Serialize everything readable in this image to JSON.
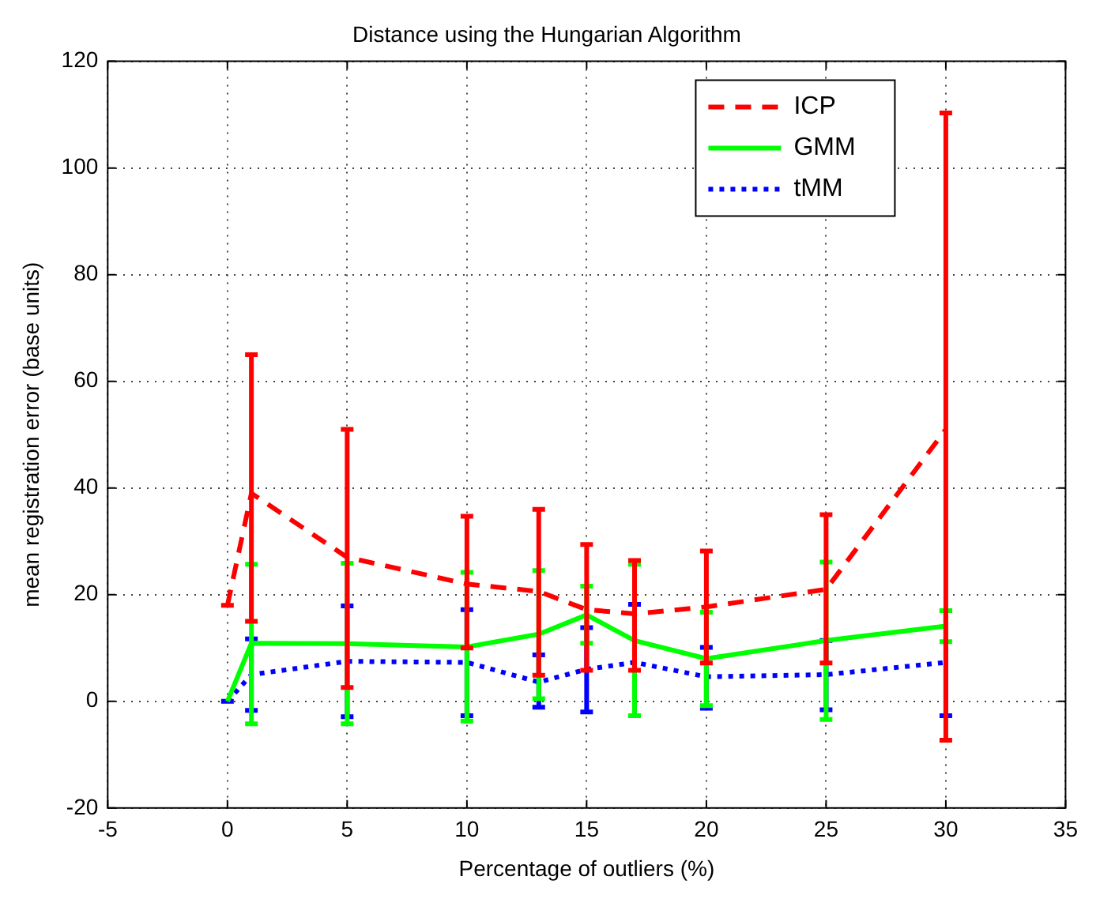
{
  "chart_data": {
    "type": "line",
    "title": "Distance using the Hungarian Algorithm",
    "xlabel": "Percentage of outliers (%)",
    "ylabel": "mean registration error (base units)",
    "xlim": [
      -5,
      35
    ],
    "xticks": [
      -5,
      0,
      5,
      10,
      15,
      20,
      25,
      30,
      35
    ],
    "ylim": [
      -20,
      120
    ],
    "yticks": [
      -20,
      0,
      20,
      40,
      60,
      80,
      100,
      120
    ],
    "grid": true,
    "legend": "top right",
    "marker": "none",
    "series": [
      {
        "name": "ICP",
        "color": "#ff0000",
        "line_style": "dashed",
        "x": [
          0,
          1,
          5,
          10,
          13,
          15,
          17,
          20,
          25,
          30
        ],
        "values": [
          18,
          39,
          27,
          22,
          20.6,
          17.2,
          16.4,
          17.7,
          21,
          51
        ],
        "errors": [
          [
            18,
            18
          ],
          [
            15,
            65
          ],
          [
            2.6,
            51
          ],
          [
            10,
            34.7
          ],
          [
            4.9,
            36
          ],
          [
            5.8,
            29.4
          ],
          [
            5.8,
            26.4
          ],
          [
            7.2,
            28.2
          ],
          [
            7.2,
            35
          ],
          [
            -7.3,
            110.3
          ]
        ]
      },
      {
        "name": "GMM",
        "color": "#00ff00",
        "line_style": "solid",
        "x": [
          0,
          1,
          5,
          10,
          13,
          15,
          17,
          20,
          25,
          30
        ],
        "values": [
          0,
          10.9,
          10.8,
          10.2,
          12.6,
          16.2,
          11.4,
          8,
          11.4,
          14.1
        ],
        "errors": [
          null,
          [
            -4.2,
            25.7
          ],
          [
            -4.2,
            25.9
          ],
          [
            -3.7,
            24.2
          ],
          [
            0.5,
            24.5
          ],
          [
            10.9,
            21.6
          ],
          [
            -2.7,
            25.7
          ],
          [
            -0.8,
            16.7
          ],
          [
            -3.4,
            26.1
          ],
          [
            11.2,
            17
          ]
        ]
      },
      {
        "name": "tMM",
        "color": "#0000ff",
        "line_style": "dotted",
        "x": [
          0,
          1,
          5,
          10,
          13,
          15,
          17,
          20,
          25,
          30
        ],
        "values": [
          0,
          5,
          7.5,
          7.3,
          3.6,
          6,
          7.3,
          4.6,
          5,
          7.3
        ],
        "errors": [
          [
            0,
            0
          ],
          [
            -1.7,
            11.7
          ],
          [
            -2.9,
            17.9
          ],
          [
            -2.7,
            17.2
          ],
          [
            -1.1,
            8.7
          ],
          [
            -2,
            13.8
          ],
          [
            -2.7,
            18.2
          ],
          [
            -1.3,
            10.1
          ],
          [
            -1.6,
            11.4
          ],
          [
            -2.7,
            17
          ]
        ]
      }
    ]
  }
}
